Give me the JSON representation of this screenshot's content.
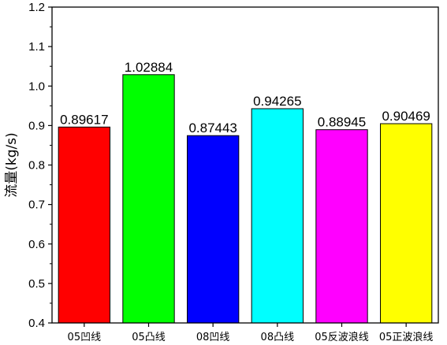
{
  "chart_data": {
    "type": "bar",
    "categories": [
      "05凹线",
      "05凸线",
      "08凹线",
      "08凸线",
      "05反波浪线",
      "05正波浪线"
    ],
    "values": [
      0.89617,
      1.02884,
      0.87443,
      0.94265,
      0.88945,
      0.90469
    ],
    "data_labels": [
      "0.89617",
      "1.02884",
      "0.87443",
      "0.94265",
      "0.88945",
      "0.90469"
    ],
    "colors": [
      "#ff0000",
      "#00ff00",
      "#0000ff",
      "#00ffff",
      "#ff00ff",
      "#ffff00"
    ],
    "title": "",
    "xlabel": "",
    "ylabel": "流量(kg/s)",
    "ylim": [
      0.4,
      1.2
    ],
    "yticks": [
      "0.4",
      "0.5",
      "0.6",
      "0.7",
      "0.8",
      "0.9",
      "1.0",
      "1.1",
      "1.2"
    ],
    "grid": false,
    "legend": "none"
  }
}
